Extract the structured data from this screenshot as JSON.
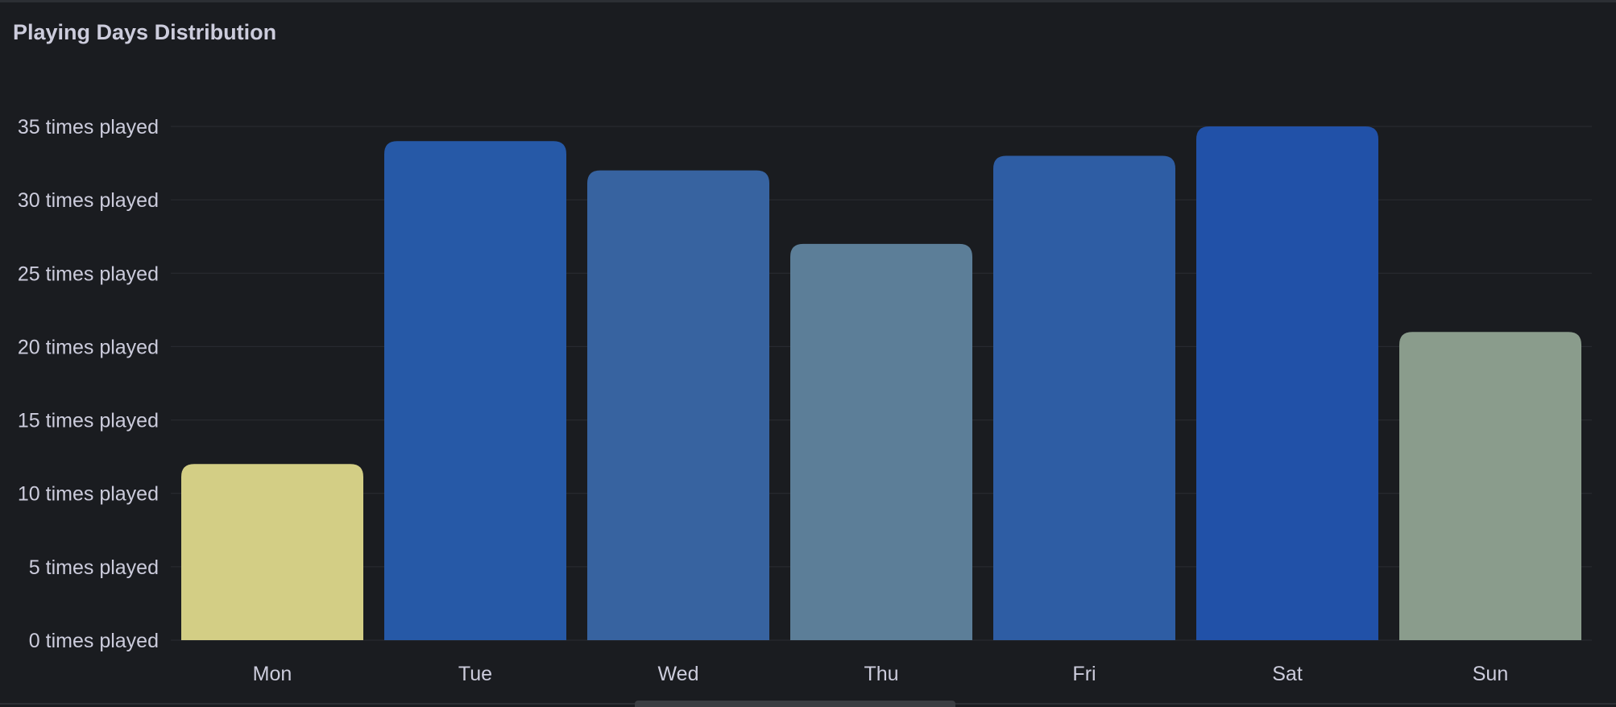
{
  "panel": {
    "title": "Playing Days Distribution"
  },
  "chart_data": {
    "type": "bar",
    "title": "Playing Days Distribution",
    "categories": [
      "Mon",
      "Tue",
      "Wed",
      "Thu",
      "Fri",
      "Sat",
      "Sun"
    ],
    "values": [
      12,
      34,
      32,
      27,
      33,
      35,
      21
    ],
    "colors": [
      "#d3ce85",
      "#2659a7",
      "#3763a0",
      "#5c7e98",
      "#2e5da4",
      "#2151a8",
      "#8a9c8c"
    ],
    "ylim": [
      0,
      35
    ],
    "yticks": [
      0,
      5,
      10,
      15,
      20,
      25,
      30,
      35
    ],
    "ytick_suffix": " times played",
    "xlabel": "",
    "ylabel": "",
    "grid": true
  }
}
